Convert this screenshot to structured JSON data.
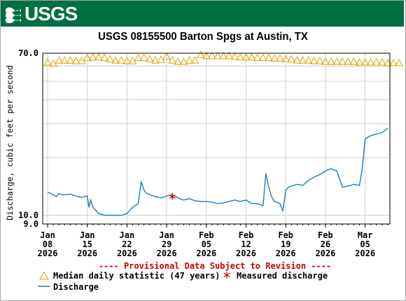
{
  "header": {
    "logo_text": "USGS",
    "banner_color": "#006f41"
  },
  "chart_data": {
    "type": "line",
    "title": "USGS 08155500 Barton Spgs at Austin, TX",
    "ylabel": "Discharge, cubic feet per second",
    "xlabel": "",
    "y_scale": "log",
    "ylim": [
      9.0,
      70.0
    ],
    "y_ticks": [
      "70.0",
      "10.0",
      "9.0"
    ],
    "grid": true,
    "x_ticks": [
      {
        "month": "Jan",
        "day": "08",
        "year": "2026"
      },
      {
        "month": "Jan",
        "day": "15",
        "year": "2026"
      },
      {
        "month": "Jan",
        "day": "22",
        "year": "2026"
      },
      {
        "month": "Jan",
        "day": "29",
        "year": "2026"
      },
      {
        "month": "Feb",
        "day": "05",
        "year": "2026"
      },
      {
        "month": "Feb",
        "day": "12",
        "year": "2026"
      },
      {
        "month": "Feb",
        "day": "19",
        "year": "2026"
      },
      {
        "month": "Feb",
        "day": "26",
        "year": "2026"
      },
      {
        "month": "Mar",
        "day": "05",
        "year": "2026"
      }
    ],
    "provisional_note": "---- Provisional Data Subject to Revision ----",
    "colors": {
      "median": "#e6a000",
      "discharge": "#1a7db5",
      "measured": "#cc0000",
      "note": "#cc0000"
    },
    "series": [
      {
        "name": "Median daily statistic (47 years)",
        "kind": "triangle-markers",
        "x": [
          "2026-01-08",
          "2026-01-09",
          "2026-01-10",
          "2026-01-11",
          "2026-01-12",
          "2026-01-13",
          "2026-01-14",
          "2026-01-15",
          "2026-01-16",
          "2026-01-17",
          "2026-01-18",
          "2026-01-19",
          "2026-01-20",
          "2026-01-21",
          "2026-01-22",
          "2026-01-23",
          "2026-01-24",
          "2026-01-25",
          "2026-01-26",
          "2026-01-27",
          "2026-01-28",
          "2026-01-29",
          "2026-01-30",
          "2026-01-31",
          "2026-02-01",
          "2026-02-02",
          "2026-02-03",
          "2026-02-04",
          "2026-02-05",
          "2026-02-06",
          "2026-02-07",
          "2026-02-08",
          "2026-02-09",
          "2026-02-10",
          "2026-02-11",
          "2026-02-12",
          "2026-02-13",
          "2026-02-14",
          "2026-02-15",
          "2026-02-16",
          "2026-02-17",
          "2026-02-18",
          "2026-02-19",
          "2026-02-20",
          "2026-02-21",
          "2026-02-22",
          "2026-02-23",
          "2026-02-24",
          "2026-02-25",
          "2026-02-26",
          "2026-02-27",
          "2026-02-28",
          "2026-03-01",
          "2026-03-02",
          "2026-03-03",
          "2026-03-04",
          "2026-03-05",
          "2026-03-06",
          "2026-03-07",
          "2026-03-08",
          "2026-03-09",
          "2026-03-10",
          "2026-03-11"
        ],
        "y": [
          63,
          62,
          64.5,
          64.5,
          64.5,
          64,
          64,
          66.5,
          67,
          67,
          66.5,
          65.5,
          64.5,
          64.5,
          64,
          64,
          66.5,
          66.5,
          65.5,
          64.5,
          65,
          67.5,
          64.5,
          63.5,
          63.5,
          64.5,
          64.5,
          69,
          68,
          68,
          68,
          68,
          68,
          67.5,
          67,
          67,
          67,
          66.5,
          66.5,
          66.5,
          66,
          66,
          65.5,
          65.5,
          64.5,
          64.5,
          64.5,
          64,
          64,
          63.5,
          63.5,
          63.5,
          63.5,
          63.5,
          63.5,
          63,
          63,
          63,
          63,
          63,
          62.5,
          62.5,
          62.5
        ]
      },
      {
        "name": "Measured discharge",
        "kind": "asterisk-markers",
        "x": [
          "2026-01-30"
        ],
        "y": [
          12.5
        ]
      },
      {
        "name": "Discharge",
        "kind": "line",
        "x": [
          "2026-01-08",
          "2026-01-08.5",
          "2026-01-09",
          "2026-01-09.5",
          "2026-01-10",
          "2026-01-10.5",
          "2026-01-11",
          "2026-01-12",
          "2026-01-13",
          "2026-01-14",
          "2026-01-15",
          "2026-01-15.3",
          "2026-01-15.6",
          "2026-01-16",
          "2026-01-17",
          "2026-01-18",
          "2026-01-19",
          "2026-01-20",
          "2026-01-21",
          "2026-01-22",
          "2026-01-23",
          "2026-01-24",
          "2026-01-24.5",
          "2026-01-25",
          "2026-01-25.5",
          "2026-01-26",
          "2026-01-27",
          "2026-01-28",
          "2026-01-29",
          "2026-01-30",
          "2026-01-31",
          "2026-02-01",
          "2026-02-02",
          "2026-02-03",
          "2026-02-04",
          "2026-02-05",
          "2026-02-06",
          "2026-02-07",
          "2026-02-08",
          "2026-02-09",
          "2026-02-10",
          "2026-02-11",
          "2026-02-12",
          "2026-02-13",
          "2026-02-14",
          "2026-02-15",
          "2026-02-15.5",
          "2026-02-16",
          "2026-02-16.5",
          "2026-02-17",
          "2026-02-18",
          "2026-02-18.5",
          "2026-02-19",
          "2026-02-19.5",
          "2026-02-20",
          "2026-02-21",
          "2026-02-22",
          "2026-02-23",
          "2026-02-24",
          "2026-02-25",
          "2026-02-26",
          "2026-02-27",
          "2026-02-28",
          "2026-03-01",
          "2026-03-02",
          "2026-03-03",
          "2026-03-04",
          "2026-03-04.5",
          "2026-03-05",
          "2026-03-06",
          "2026-03-07",
          "2026-03-08",
          "2026-03-09"
        ],
        "y": [
          13.2,
          13.0,
          12.8,
          12.5,
          13.0,
          12.8,
          12.8,
          12.9,
          12.6,
          12.4,
          12.6,
          11.0,
          12.0,
          11.0,
          10.2,
          10.0,
          10.0,
          10.0,
          10.0,
          10.2,
          11.0,
          11.5,
          15.0,
          13.5,
          13.0,
          12.8,
          12.5,
          12.3,
          12.6,
          12.8,
          12.3,
          12.0,
          12.2,
          11.9,
          11.8,
          11.8,
          11.7,
          11.5,
          11.6,
          11.8,
          12.0,
          11.8,
          12.0,
          11.5,
          11.5,
          11.2,
          16.5,
          14.0,
          12.5,
          11.8,
          11.5,
          10.5,
          13.5,
          14.0,
          14.2,
          14.5,
          14.3,
          15.2,
          15.8,
          16.3,
          17.0,
          17.5,
          17.0,
          14.0,
          14.2,
          14.5,
          14.3,
          17.5,
          25.0,
          26.0,
          26.5,
          27.0,
          28.5
        ]
      }
    ],
    "legend": [
      {
        "label": "Median daily statistic (47 years)",
        "marker": "triangle"
      },
      {
        "label": "Measured discharge",
        "marker": "asterisk"
      },
      {
        "label": "Discharge",
        "marker": "line"
      }
    ]
  }
}
